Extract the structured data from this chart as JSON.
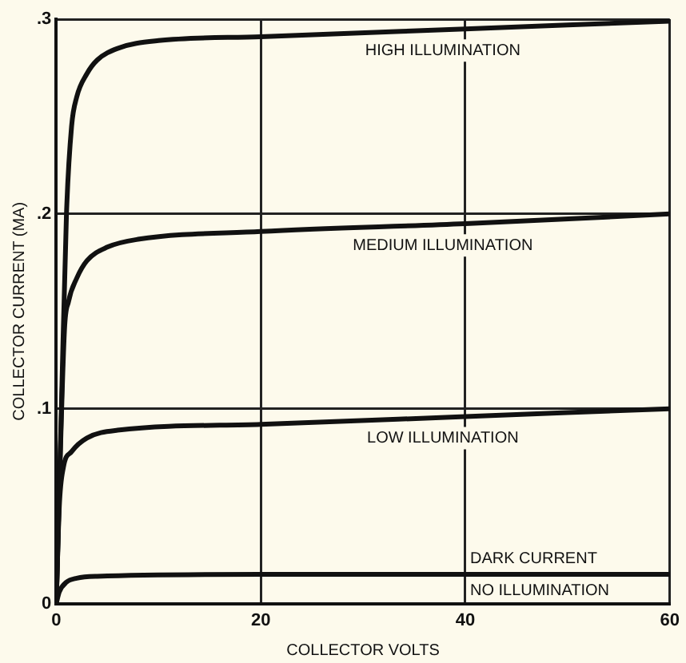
{
  "chart_data": {
    "type": "line",
    "xlabel": "COLLECTOR VOLTS",
    "ylabel": "COLLECTOR CURRENT (MA)",
    "xlim": [
      0,
      60
    ],
    "xticks": [
      0,
      20,
      40,
      60
    ],
    "ylim": [
      0,
      0.3
    ],
    "yticks": [
      0,
      {
        "value": 0.1,
        "label": ".1"
      },
      {
        "value": 0.2,
        "label": ".2"
      },
      {
        "value": 0.3,
        "label": ".3"
      }
    ],
    "grid": true,
    "legend": false,
    "marker": "none",
    "line_style": "solid",
    "annotations": [
      {
        "text": "NO ILLUMINATION",
        "x": 40,
        "y": 0.015
      }
    ],
    "series": [
      {
        "name": "HIGH ILLUMINATION",
        "color": "#111111",
        "x": [
          0,
          0.5,
          1,
          1.5,
          2,
          3,
          4,
          6,
          10,
          20,
          40,
          60
        ],
        "values": [
          0,
          0.1,
          0.2,
          0.245,
          0.26,
          0.272,
          0.279,
          0.285,
          0.289,
          0.291,
          0.295,
          0.299
        ]
      },
      {
        "name": "MEDIUM ILLUMINATION",
        "color": "#111111",
        "x": [
          0,
          0.8,
          1.2,
          2,
          3,
          5,
          8,
          20,
          40,
          60
        ],
        "values": [
          0,
          0.14,
          0.155,
          0.167,
          0.176,
          0.183,
          0.187,
          0.191,
          0.195,
          0.2
        ]
      },
      {
        "name": "LOW ILLUMINATION",
        "color": "#111111",
        "x": [
          0,
          0.3,
          0.7,
          1.5,
          3,
          6,
          20,
          40,
          60
        ],
        "values": [
          0,
          0.05,
          0.07,
          0.078,
          0.085,
          0.089,
          0.092,
          0.096,
          0.1
        ]
      },
      {
        "name": "DARK CURRENT",
        "color": "#111111",
        "x": [
          0,
          0.3,
          1,
          2,
          4,
          20,
          60
        ],
        "values": [
          0,
          0.006,
          0.011,
          0.013,
          0.014,
          0.015,
          0.015
        ]
      }
    ]
  }
}
